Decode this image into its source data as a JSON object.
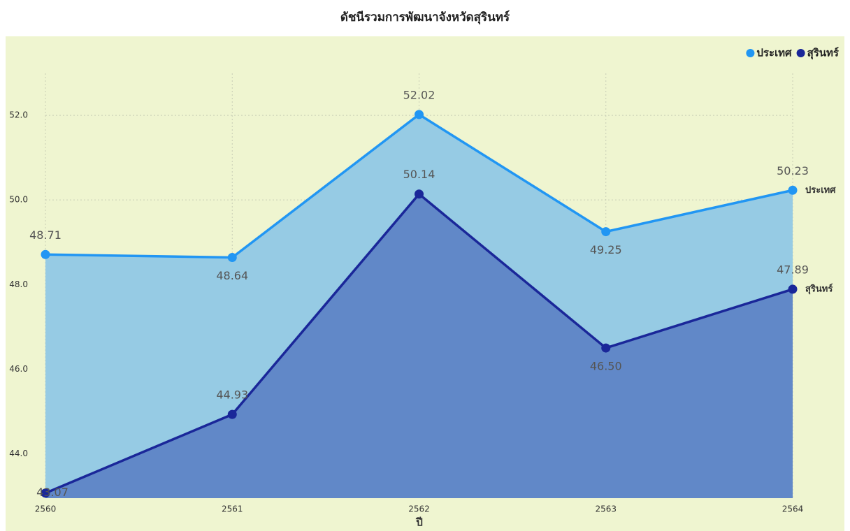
{
  "chart_data": {
    "type": "area",
    "title": "ดัชนีรวมการพัฒนาจังหวัดสุรินทร์",
    "x_label": "ปี",
    "categories": [
      "2560",
      "2561",
      "2562",
      "2563",
      "2564"
    ],
    "series": [
      {
        "name": "ประเทศ",
        "color": "#2196f3",
        "fill": "#96cbe4",
        "values": [
          48.71,
          48.64,
          52.02,
          49.25,
          50.23
        ],
        "value_labels": [
          "48.71",
          "48.64",
          "52.02",
          "49.25",
          "50.23"
        ]
      },
      {
        "name": "สุรินทร์",
        "color": "#1a2799",
        "fill": "#6188c8",
        "values": [
          43.07,
          44.93,
          50.14,
          46.5,
          47.89
        ],
        "value_labels": [
          "43.07",
          "44.93",
          "50.14",
          "46.50",
          "47.89"
        ]
      }
    ],
    "ylim": [
      42.95,
      53.1
    ],
    "yticks": [
      {
        "value": 44,
        "label": "44.0"
      },
      {
        "value": 46,
        "label": "46.0"
      },
      {
        "value": 48,
        "label": "48.0"
      },
      {
        "value": 50,
        "label": "50.0"
      },
      {
        "value": 52,
        "label": "52.0"
      }
    ],
    "grid": true,
    "legend": "top-right"
  }
}
